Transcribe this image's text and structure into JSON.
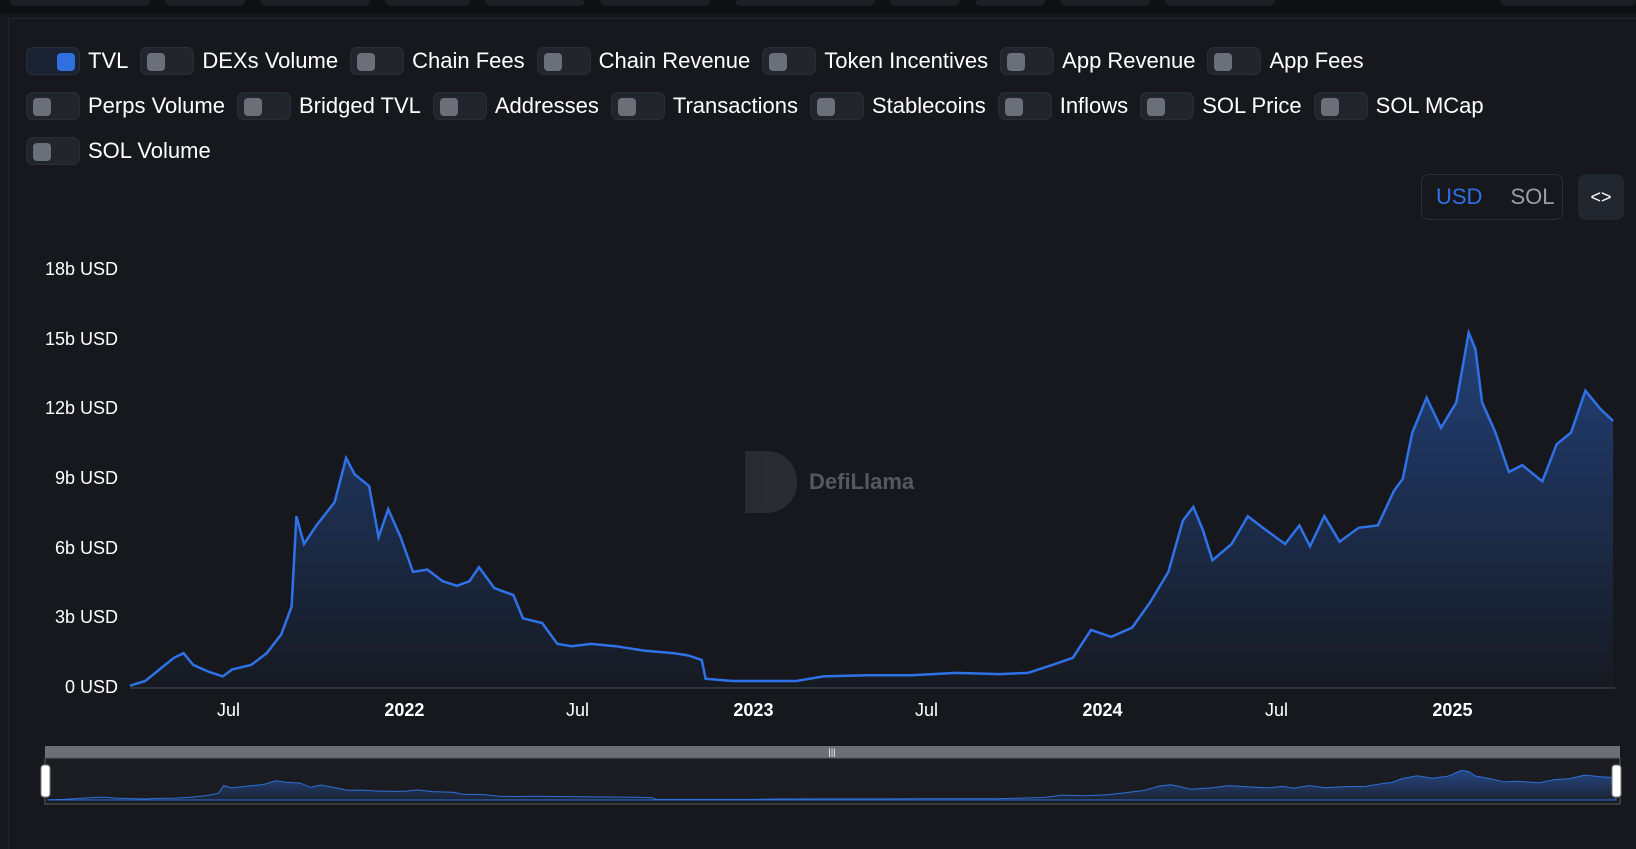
{
  "toggles": {
    "rows": [
      [
        {
          "label": "TVL",
          "on": true
        },
        {
          "label": "DEXs Volume",
          "on": false
        },
        {
          "label": "Chain Fees",
          "on": false
        },
        {
          "label": "Chain Revenue",
          "on": false
        },
        {
          "label": "Token Incentives",
          "on": false
        },
        {
          "label": "App Revenue",
          "on": false
        },
        {
          "label": "App Fees",
          "on": false
        }
      ],
      [
        {
          "label": "Perps Volume",
          "on": false
        },
        {
          "label": "Bridged TVL",
          "on": false
        },
        {
          "label": "Addresses",
          "on": false
        },
        {
          "label": "Transactions",
          "on": false
        },
        {
          "label": "Stablecoins",
          "on": false
        },
        {
          "label": "Inflows",
          "on": false
        },
        {
          "label": "SOL Price",
          "on": false
        },
        {
          "label": "SOL MCap",
          "on": false
        }
      ],
      [
        {
          "label": "SOL Volume",
          "on": false
        }
      ]
    ]
  },
  "currency": {
    "options": [
      "USD",
      "SOL"
    ],
    "selected": "USD"
  },
  "embed_icon": "code-icon",
  "watermark": "DefiLlama",
  "colors": {
    "line": "#2f72e8",
    "accent": "#2f72e8",
    "background": "#16181d"
  },
  "chart_data": {
    "type": "area",
    "series": [
      {
        "name": "TVL",
        "points": [
          [
            "2021-03-20",
            0.1
          ],
          [
            "2021-04-05",
            0.3
          ],
          [
            "2021-04-20",
            0.8
          ],
          [
            "2021-05-05",
            1.3
          ],
          [
            "2021-05-15",
            1.5
          ],
          [
            "2021-05-25",
            1.0
          ],
          [
            "2021-06-10",
            0.7
          ],
          [
            "2021-06-25",
            0.5
          ],
          [
            "2021-07-05",
            0.8
          ],
          [
            "2021-07-25",
            1.0
          ],
          [
            "2021-08-10",
            1.5
          ],
          [
            "2021-08-25",
            2.3
          ],
          [
            "2021-09-05",
            3.5
          ],
          [
            "2021-09-10",
            7.4
          ],
          [
            "2021-09-18",
            6.2
          ],
          [
            "2021-10-01",
            7.0
          ],
          [
            "2021-10-20",
            8.0
          ],
          [
            "2021-11-01",
            9.9
          ],
          [
            "2021-11-10",
            9.2
          ],
          [
            "2021-11-25",
            8.7
          ],
          [
            "2021-12-05",
            6.5
          ],
          [
            "2021-12-15",
            7.7
          ],
          [
            "2021-12-28",
            6.5
          ],
          [
            "2022-01-10",
            5.0
          ],
          [
            "2022-01-25",
            5.1
          ],
          [
            "2022-02-10",
            4.6
          ],
          [
            "2022-02-25",
            4.4
          ],
          [
            "2022-03-10",
            4.6
          ],
          [
            "2022-03-20",
            5.2
          ],
          [
            "2022-04-05",
            4.3
          ],
          [
            "2022-04-25",
            4.0
          ],
          [
            "2022-05-05",
            3.0
          ],
          [
            "2022-05-25",
            2.8
          ],
          [
            "2022-06-10",
            1.9
          ],
          [
            "2022-06-25",
            1.8
          ],
          [
            "2022-07-15",
            1.9
          ],
          [
            "2022-08-10",
            1.8
          ],
          [
            "2022-09-10",
            1.6
          ],
          [
            "2022-10-10",
            1.5
          ],
          [
            "2022-10-25",
            1.4
          ],
          [
            "2022-11-08",
            1.2
          ],
          [
            "2022-11-12",
            0.4
          ],
          [
            "2022-12-10",
            0.3
          ],
          [
            "2023-01-15",
            0.3
          ],
          [
            "2023-02-15",
            0.3
          ],
          [
            "2023-03-15",
            0.5
          ],
          [
            "2023-05-01",
            0.55
          ],
          [
            "2023-06-15",
            0.55
          ],
          [
            "2023-08-01",
            0.65
          ],
          [
            "2023-09-15",
            0.6
          ],
          [
            "2023-10-15",
            0.65
          ],
          [
            "2023-11-10",
            1.0
          ],
          [
            "2023-12-01",
            1.3
          ],
          [
            "2023-12-20",
            2.5
          ],
          [
            "2024-01-10",
            2.2
          ],
          [
            "2024-02-01",
            2.6
          ],
          [
            "2024-02-20",
            3.7
          ],
          [
            "2024-03-10",
            5.0
          ],
          [
            "2024-03-25",
            7.2
          ],
          [
            "2024-04-05",
            7.8
          ],
          [
            "2024-04-15",
            6.8
          ],
          [
            "2024-04-25",
            5.5
          ],
          [
            "2024-05-15",
            6.2
          ],
          [
            "2024-06-01",
            7.4
          ],
          [
            "2024-06-20",
            6.8
          ],
          [
            "2024-07-10",
            6.2
          ],
          [
            "2024-07-25",
            7.0
          ],
          [
            "2024-08-05",
            6.1
          ],
          [
            "2024-08-20",
            7.4
          ],
          [
            "2024-09-05",
            6.3
          ],
          [
            "2024-09-25",
            6.9
          ],
          [
            "2024-10-15",
            7.0
          ],
          [
            "2024-11-01",
            8.5
          ],
          [
            "2024-11-10",
            9.0
          ],
          [
            "2024-11-20",
            11.0
          ],
          [
            "2024-12-05",
            12.5
          ],
          [
            "2024-12-20",
            11.2
          ],
          [
            "2025-01-05",
            12.3
          ],
          [
            "2025-01-18",
            15.3
          ],
          [
            "2025-01-25",
            14.6
          ],
          [
            "2025-02-01",
            12.3
          ],
          [
            "2025-02-15",
            11.0
          ],
          [
            "2025-03-01",
            9.3
          ],
          [
            "2025-03-15",
            9.6
          ],
          [
            "2025-04-05",
            8.9
          ],
          [
            "2025-04-20",
            10.5
          ],
          [
            "2025-05-05",
            11.0
          ],
          [
            "2025-05-20",
            12.8
          ],
          [
            "2025-06-05",
            12.0
          ],
          [
            "2025-06-18",
            11.5
          ]
        ]
      }
    ],
    "x_ticks": [
      {
        "date": "2021-07-01",
        "label": "Jul",
        "bold": false
      },
      {
        "date": "2022-01-01",
        "label": "2022",
        "bold": true
      },
      {
        "date": "2022-07-01",
        "label": "Jul",
        "bold": false
      },
      {
        "date": "2023-01-01",
        "label": "2023",
        "bold": true
      },
      {
        "date": "2023-07-01",
        "label": "Jul",
        "bold": false
      },
      {
        "date": "2024-01-01",
        "label": "2024",
        "bold": true
      },
      {
        "date": "2024-07-01",
        "label": "Jul",
        "bold": false
      },
      {
        "date": "2025-01-01",
        "label": "2025",
        "bold": true
      }
    ],
    "y_ticks": [
      {
        "value": 0,
        "label": "0 USD"
      },
      {
        "value": 3,
        "label": "3b USD"
      },
      {
        "value": 6,
        "label": "6b USD"
      },
      {
        "value": 9,
        "label": "9b USD"
      },
      {
        "value": 12,
        "label": "12b USD"
      },
      {
        "value": 15,
        "label": "15b USD"
      },
      {
        "value": 18,
        "label": "18b USD"
      }
    ],
    "ylim": [
      0,
      18
    ],
    "xlim": [
      "2021-03-20",
      "2025-06-20"
    ],
    "grid": false,
    "legend": "none"
  }
}
